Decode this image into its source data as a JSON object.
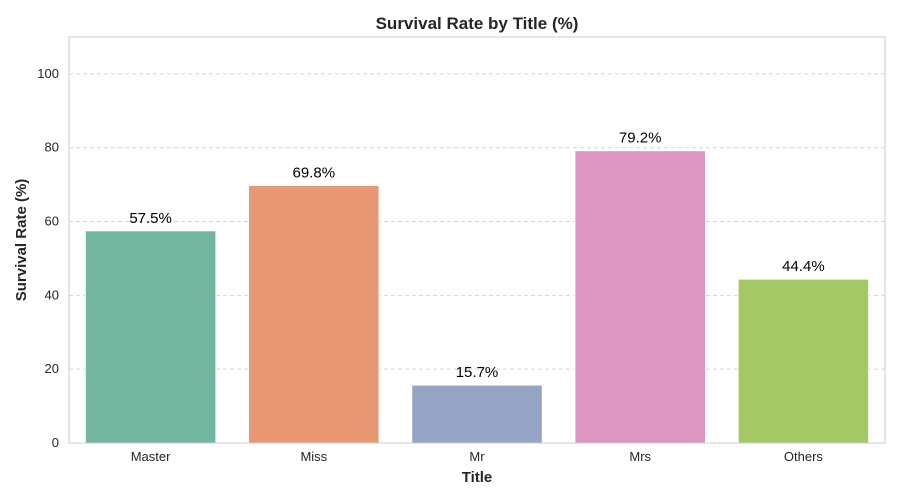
{
  "chart_data": {
    "type": "bar",
    "title": "Survival Rate by Title (%)",
    "xlabel": "Title",
    "ylabel": "Survival Rate (%)",
    "categories": [
      "Master",
      "Miss",
      "Mr",
      "Mrs",
      "Others"
    ],
    "values": [
      57.5,
      69.8,
      15.7,
      79.2,
      44.4
    ],
    "data_labels": [
      "57.5%",
      "69.8%",
      "15.7%",
      "79.2%",
      "44.4%"
    ],
    "colors": [
      "#73b6a0",
      "#e99874",
      "#95a4c4",
      "#db96c1",
      "#a3c864"
    ],
    "ylim": [
      0,
      110
    ],
    "yticks": [
      0,
      20,
      40,
      60,
      80,
      100
    ],
    "grid": "horizontal-dashed",
    "legend": "none"
  }
}
